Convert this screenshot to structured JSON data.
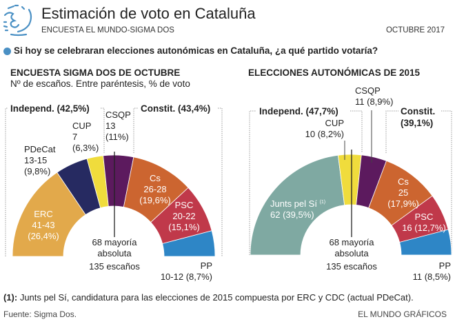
{
  "header": {
    "title": "Estimación de voto en Cataluña",
    "subtitle": "ENCUESTA EL MUNDO-SIGMA DOS",
    "date": "OCTUBRE 2017",
    "logo_icon": "sketch-face-logo",
    "accent_color": "#4a90c4"
  },
  "question": "Si hoy se celebraran elecciones autonómicas en Cataluña, ¿a qué partido votaría?",
  "chart_data": [
    {
      "type": "semicircle-parliament",
      "title": "ENCUESTA SIGMA DOS DE OCTUBRE",
      "subtitle": "Nº de escaños. Entre paréntesis, % de voto",
      "total_seats_label": "135 escaños",
      "majority_label": [
        "68 mayoría",
        "absoluta"
      ],
      "total_seats": 135,
      "majority": 68,
      "blocs": [
        {
          "label": "Independ. (42,5%)",
          "vote_pct": 42.5
        },
        {
          "label": "Constit. (43,4%)",
          "vote_pct": 43.4
        }
      ],
      "parties": [
        {
          "name": "ERC",
          "seats_min": 41,
          "seats_max": 43,
          "seats_text": "41-43",
          "vote_pct": 26.4,
          "vote_text": "(26,4%)",
          "color": "#e2a94b"
        },
        {
          "name": "PDeCat",
          "seats_min": 13,
          "seats_max": 15,
          "seats_text": "13-15",
          "vote_pct": 9.8,
          "vote_text": "(9,8%)",
          "color": "#262a61"
        },
        {
          "name": "CUP",
          "seats_min": 7,
          "seats_max": 7,
          "seats_text": "7",
          "vote_pct": 6.3,
          "vote_text": "(6,3%)",
          "color": "#f0dc3c"
        },
        {
          "name": "CSQP",
          "seats_min": 13,
          "seats_max": 13,
          "seats_text": "13",
          "vote_pct": 11,
          "vote_text": "(11%)",
          "color": "#5c1a5e"
        },
        {
          "name": "Cs",
          "seats_min": 26,
          "seats_max": 28,
          "seats_text": "26-28",
          "vote_pct": 19.6,
          "vote_text": "(19,6%)",
          "color": "#cc6530"
        },
        {
          "name": "PSC",
          "seats_min": 20,
          "seats_max": 22,
          "seats_text": "20-22",
          "vote_pct": 15.1,
          "vote_text": "(15,1%)",
          "color": "#c0394a"
        },
        {
          "name": "PP",
          "seats_min": 10,
          "seats_max": 12,
          "seats_text": "10-12",
          "vote_pct": 8.7,
          "vote_text": "(8,7%)",
          "color": "#2e86c6"
        }
      ]
    },
    {
      "type": "semicircle-parliament",
      "title": "ELECCIONES AUTONÓMICAS DE 2015",
      "total_seats_label": "135 escaños",
      "majority_label": [
        "68 mayoría",
        "absoluta"
      ],
      "total_seats": 135,
      "majority": 68,
      "blocs": [
        {
          "label": "Independ. (47,7%)",
          "vote_pct": 47.7
        },
        {
          "label": "Constit.",
          "label2": "(39,1%)",
          "vote_pct": 39.1
        }
      ],
      "parties": [
        {
          "name": "Junts pel Sí",
          "note_marker": "(1)",
          "seats_min": 62,
          "seats_max": 62,
          "seats_text": "62",
          "vote_pct": 39.5,
          "vote_text": "(39,5%)",
          "color": "#7fa9a2"
        },
        {
          "name": "CUP",
          "seats_min": 10,
          "seats_max": 10,
          "seats_text": "10",
          "vote_pct": 8.2,
          "vote_text": "(8,2%)",
          "color": "#f0dc3c"
        },
        {
          "name": "CSQP",
          "seats_min": 11,
          "seats_max": 11,
          "seats_text": "11",
          "vote_pct": 8.9,
          "vote_text": "(8,9%)",
          "color": "#5c1a5e"
        },
        {
          "name": "Cs",
          "seats_min": 25,
          "seats_max": 25,
          "seats_text": "25",
          "vote_pct": 17.9,
          "vote_text": "(17,9%)",
          "color": "#cc6530"
        },
        {
          "name": "PSC",
          "seats_min": 16,
          "seats_max": 16,
          "seats_text": "16",
          "vote_pct": 12.7,
          "vote_text": "(12,7%)",
          "color": "#c0394a"
        },
        {
          "name": "PP",
          "seats_min": 11,
          "seats_max": 11,
          "seats_text": "11",
          "vote_pct": 8.5,
          "vote_text": "(8,5%)",
          "color": "#2e86c6"
        }
      ]
    }
  ],
  "footnote": {
    "marker": "(1):",
    "text": " Junts pel Sí, candidatura para las elecciones de 2015 compuesta por ERC y CDC (actual PDeCat)."
  },
  "source": "Fuente: Sigma Dos.",
  "credit": "EL MUNDO GRÁFICOS"
}
